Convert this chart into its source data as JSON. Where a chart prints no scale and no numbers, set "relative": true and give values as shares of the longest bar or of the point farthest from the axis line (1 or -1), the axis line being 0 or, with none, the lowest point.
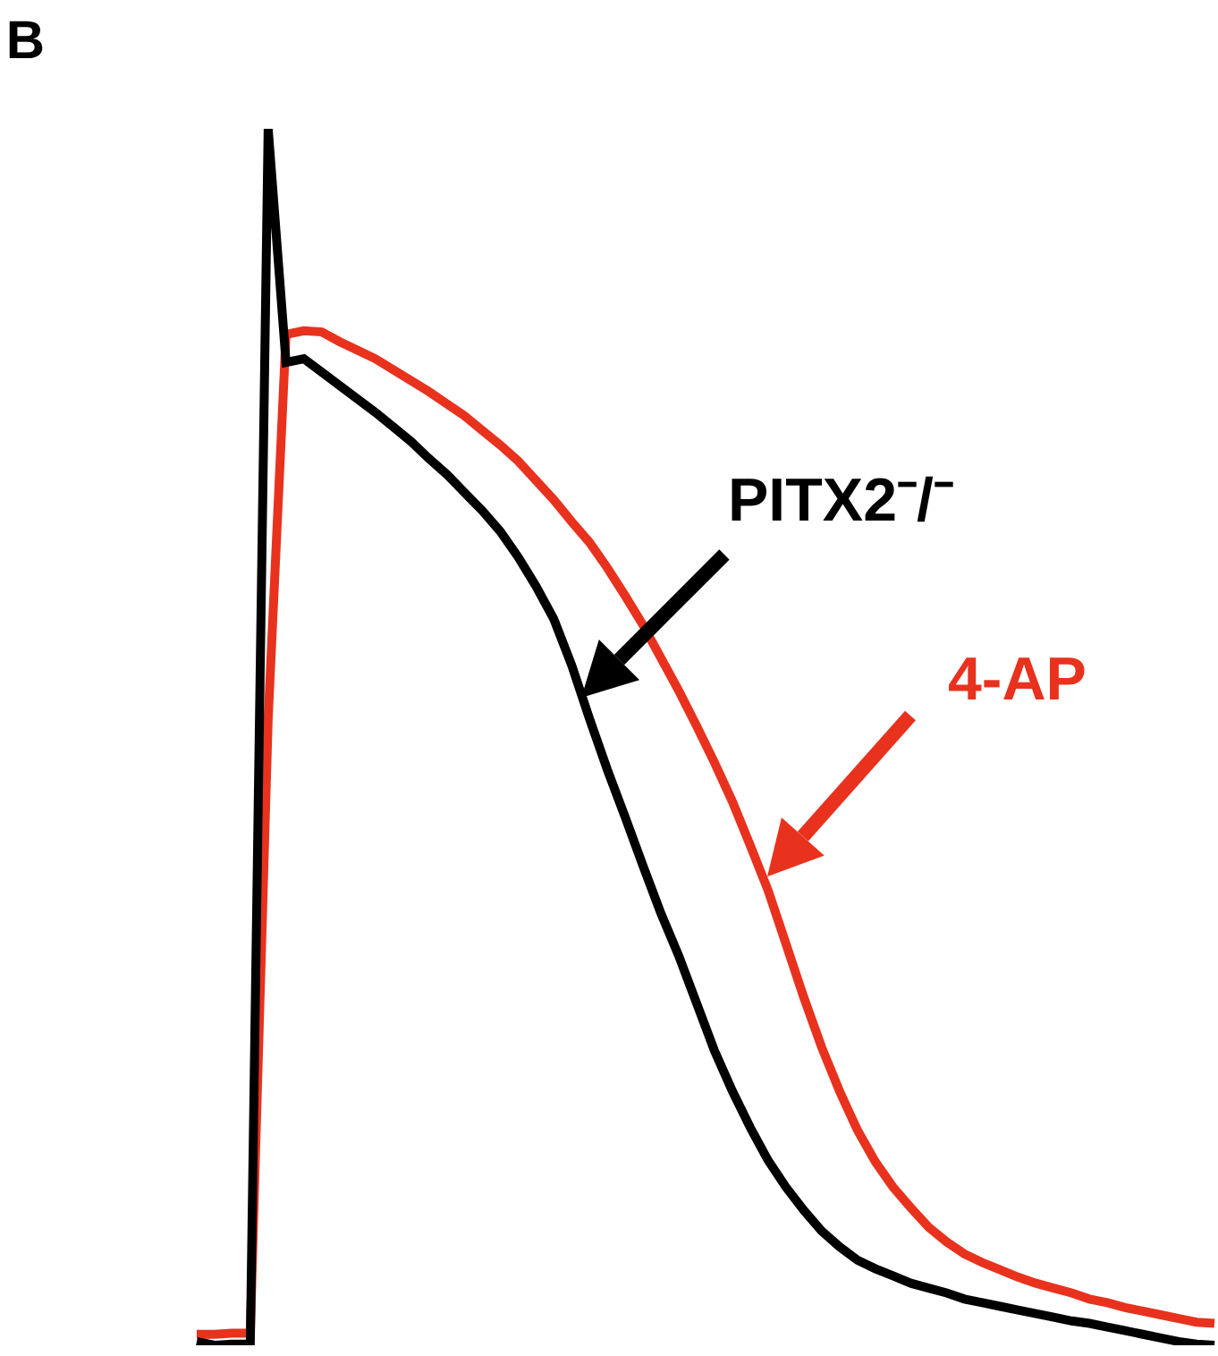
{
  "chart_data": {
    "type": "line",
    "title": "B",
    "relative": true,
    "legend": false,
    "categories": [
      null,
      null,
      null,
      null,
      null,
      null,
      null,
      null,
      null,
      null,
      null,
      null,
      null,
      null,
      null,
      null,
      null,
      null,
      null,
      null,
      null,
      null,
      null,
      null,
      null,
      null,
      null,
      null,
      null,
      null,
      null,
      null,
      null,
      null,
      null,
      null,
      null,
      null,
      null,
      null,
      null,
      null,
      null,
      null,
      null,
      null,
      null,
      null,
      null,
      null,
      null,
      null,
      null,
      null,
      null,
      null,
      null,
      null
    ],
    "series": [
      {
        "name": "4-AP",
        "color": "#e8321e",
        "values": [
          0.009,
          0.009,
          0.01,
          0.01,
          0.515,
          0.831,
          0.834,
          0.833,
          0.825,
          0.818,
          0.811,
          0.802,
          0.793,
          0.784,
          0.774,
          0.764,
          0.752,
          0.74,
          0.727,
          0.711,
          0.695,
          0.677,
          0.66,
          0.639,
          0.616,
          0.592,
          0.565,
          0.538,
          0.509,
          0.479,
          0.447,
          0.411,
          0.374,
          0.33,
          0.286,
          0.245,
          0.209,
          0.177,
          0.151,
          0.13,
          0.113,
          0.097,
          0.085,
          0.075,
          0.068,
          0.062,
          0.056,
          0.051,
          0.047,
          0.043,
          0.038,
          0.035,
          0.031,
          0.028,
          0.025,
          0.022,
          0.019,
          0.018
        ]
      },
      {
        "name": "PITX2⁻/⁻",
        "color": "#000000",
        "values": [
          0.003,
          0,
          0.001,
          0.001,
          1,
          0.808,
          0.811,
          0.8,
          0.789,
          0.778,
          0.767,
          0.755,
          0.743,
          0.729,
          0.716,
          0.701,
          0.686,
          0.669,
          0.648,
          0.624,
          0.597,
          0.559,
          0.515,
          0.473,
          0.434,
          0.394,
          0.355,
          0.32,
          0.281,
          0.242,
          0.209,
          0.179,
          0.152,
          0.13,
          0.111,
          0.094,
          0.081,
          0.07,
          0.063,
          0.057,
          0.051,
          0.047,
          0.043,
          0.038,
          0.035,
          0.032,
          0.029,
          0.026,
          0.023,
          0.02,
          0.018,
          0.015,
          0.012,
          0.009,
          0.006,
          0.003,
          0.001,
          0
        ]
      }
    ]
  }
}
